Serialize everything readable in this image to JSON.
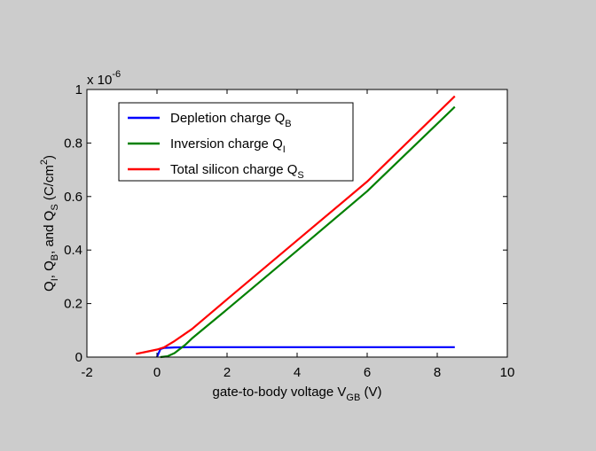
{
  "chart_data": {
    "type": "line",
    "xlabel": {
      "main": "gate-to-body voltage V",
      "sub": "GB",
      "suffix": " (V)"
    },
    "ylabel": {
      "parts": [
        {
          "t": "Q"
        },
        {
          "t": "I",
          "sub": true
        },
        {
          "t": ", Q"
        },
        {
          "t": "B",
          "sub": true
        },
        {
          "t": ", and Q"
        },
        {
          "t": "S",
          "sub": true
        },
        {
          "t": " (C/cm"
        },
        {
          "t": "2",
          "sup": true
        },
        {
          "t": ")"
        }
      ]
    },
    "y_multiplier": {
      "base": "x 10",
      "exp": "-6"
    },
    "xlim": [
      -2,
      10
    ],
    "ylim": [
      0,
      1
    ],
    "xticks": [
      -2,
      0,
      2,
      4,
      6,
      8,
      10
    ],
    "yticks": [
      0,
      0.2,
      0.4,
      0.6,
      0.8,
      1
    ],
    "ytick_labels": [
      "0",
      "0.2",
      "0.4",
      "0.6",
      "0.8",
      "1"
    ],
    "legend_position": "top-left",
    "series": [
      {
        "name": "Depletion charge Q",
        "name_sub": "B",
        "color": "#0000ff",
        "x": [
          0.0,
          0.1,
          0.2,
          0.5,
          1.0,
          2.0,
          4.0,
          6.0,
          8.5
        ],
        "y": [
          0.0,
          0.03,
          0.034,
          0.036,
          0.037,
          0.037,
          0.037,
          0.037,
          0.037
        ]
      },
      {
        "name": "Inversion charge Q",
        "name_sub": "I",
        "color": "#008000",
        "x": [
          0.1,
          0.3,
          0.5,
          0.8,
          1.0,
          2.0,
          4.0,
          6.0,
          8.5
        ],
        "y": [
          0.0,
          0.003,
          0.015,
          0.045,
          0.07,
          0.178,
          0.398,
          0.62,
          0.935
        ]
      },
      {
        "name": "Total silicon charge Q",
        "name_sub": "S",
        "color": "#ff0000",
        "x": [
          -0.6,
          -0.3,
          0.0,
          0.2,
          0.5,
          1.0,
          2.0,
          4.0,
          6.0,
          8.5
        ],
        "y": [
          0.012,
          0.02,
          0.028,
          0.036,
          0.06,
          0.105,
          0.216,
          0.436,
          0.656,
          0.975
        ]
      }
    ]
  }
}
